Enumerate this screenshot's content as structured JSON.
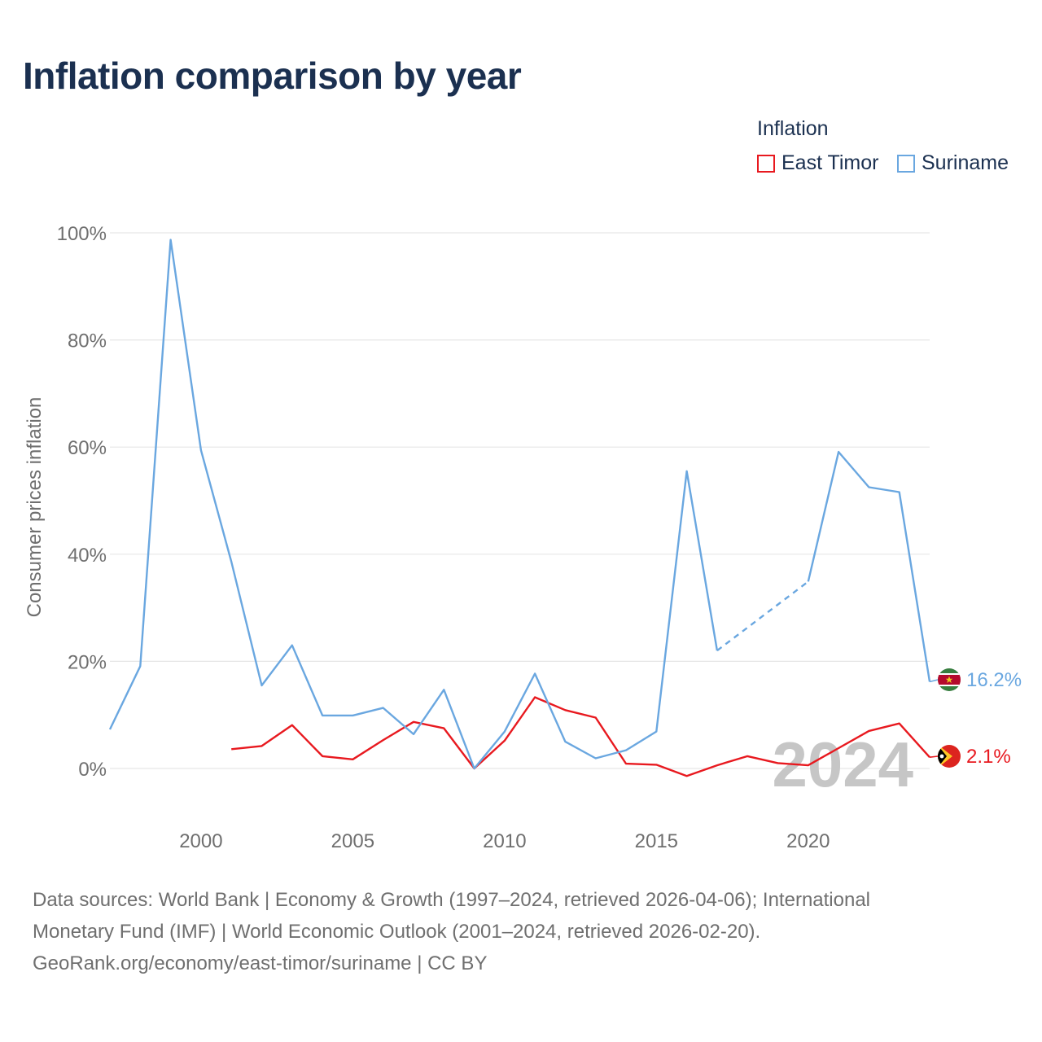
{
  "title": "Inflation comparison by year",
  "legend": {
    "title": "Inflation",
    "items": [
      {
        "label": "East Timor",
        "color": "#e8191f"
      },
      {
        "label": "Suriname",
        "color": "#6aa7e0"
      }
    ]
  },
  "watermark_year": "2024",
  "footer": {
    "line1": "Data sources: World Bank | Economy & Growth (1997–2024, retrieved 2026-04-06); International",
    "line2": "Monetary Fund (IMF) | World Economic Outlook (2001–2024, retrieved 2026-02-20).",
    "line3": "GeoRank.org/economy/east-timor/suriname | CC BY"
  },
  "chart_data": {
    "type": "line",
    "title": "Inflation comparison by year",
    "xlabel": "",
    "ylabel": "Consumer prices inflation",
    "xlim": [
      1997,
      2024
    ],
    "ylim": [
      -10,
      100
    ],
    "x_ticks": [
      2000,
      2005,
      2010,
      2015,
      2020
    ],
    "x_tick_labels": [
      "2000",
      "2005",
      "2010",
      "2015",
      "2020"
    ],
    "y_ticks": [
      0,
      20,
      40,
      60,
      80,
      100
    ],
    "y_tick_labels": [
      "0%",
      "20%",
      "40%",
      "60%",
      "80%",
      "100%"
    ],
    "grid": true,
    "legend_position": "top-right",
    "series": [
      {
        "name": "East Timor",
        "color": "#e8191f",
        "end_label": "2.1%",
        "flag": "east-timor-flag",
        "points": [
          [
            2001,
            3.6
          ],
          [
            2002,
            4.2
          ],
          [
            2003,
            8.1
          ],
          [
            2004,
            2.3
          ],
          [
            2005,
            1.7
          ],
          [
            2006,
            5.3
          ],
          [
            2007,
            8.7
          ],
          [
            2008,
            7.5
          ],
          [
            2009,
            0.0
          ],
          [
            2010,
            5.2
          ],
          [
            2011,
            13.3
          ],
          [
            2012,
            10.9
          ],
          [
            2013,
            9.5
          ],
          [
            2014,
            0.9
          ],
          [
            2015,
            0.7
          ],
          [
            2016,
            -1.4
          ],
          [
            2017,
            0.6
          ],
          [
            2018,
            2.3
          ],
          [
            2019,
            1.0
          ],
          [
            2020,
            0.6
          ],
          [
            2021,
            3.8
          ],
          [
            2022,
            7.0
          ],
          [
            2023,
            8.4
          ],
          [
            2024,
            2.1
          ]
        ]
      },
      {
        "name": "Suriname",
        "color": "#6aa7e0",
        "end_label": "16.2%",
        "flag": "suriname-flag",
        "points": [
          [
            1997,
            7.3
          ],
          [
            1998,
            19.1
          ],
          [
            1999,
            98.7
          ],
          [
            2000,
            59.4
          ],
          [
            2001,
            38.6
          ],
          [
            2002,
            15.5
          ],
          [
            2003,
            23.0
          ],
          [
            2004,
            9.9
          ],
          [
            2005,
            9.9
          ],
          [
            2006,
            11.3
          ],
          [
            2007,
            6.4
          ],
          [
            2008,
            14.7
          ],
          [
            2009,
            0.0
          ],
          [
            2010,
            6.9
          ],
          [
            2011,
            17.7
          ],
          [
            2012,
            5.0
          ],
          [
            2013,
            1.9
          ],
          [
            2014,
            3.4
          ],
          [
            2015,
            6.9
          ],
          [
            2016,
            55.5
          ],
          [
            2017,
            22.0
          ],
          [
            2020,
            34.9
          ],
          [
            2021,
            59.1
          ],
          [
            2022,
            52.5
          ],
          [
            2023,
            51.6
          ],
          [
            2024,
            16.2
          ]
        ],
        "gap_between": [
          2017,
          2020
        ]
      }
    ]
  }
}
